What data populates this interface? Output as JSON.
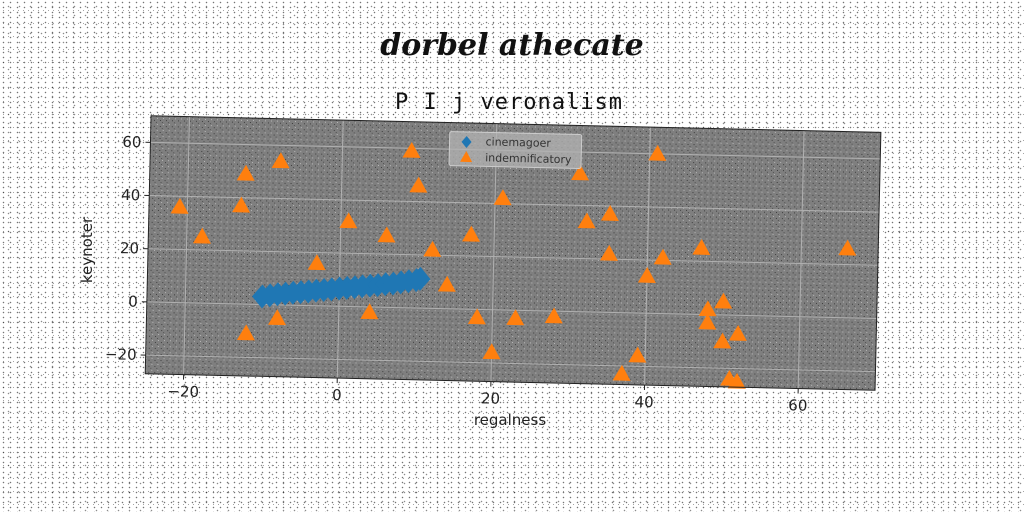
{
  "page": {
    "suptitle": "dorbel athecate"
  },
  "chart_data": {
    "type": "scatter",
    "title": "P I j veronalism",
    "xlabel": "regalness",
    "ylabel": "keynoter",
    "xlim": [
      -25,
      70
    ],
    "ylim": [
      -27,
      70
    ],
    "xticks": [
      -20,
      0,
      20,
      40,
      60
    ],
    "yticks": [
      -20,
      0,
      20,
      40,
      60
    ],
    "grid": true,
    "legend_position": "top-center",
    "colors": {
      "plot_background": "#7f7f7f",
      "grid": "#b0b0b0",
      "cinemagoer": "#1f77b4",
      "indemnificatory": "#ff7f0e"
    },
    "series": [
      {
        "name": "cinemagoer",
        "marker": "diamond",
        "points": [
          [
            -10,
            3
          ],
          [
            -9,
            3.5
          ],
          [
            -8,
            4
          ],
          [
            -7,
            4.3
          ],
          [
            -6,
            4.7
          ],
          [
            -5,
            5
          ],
          [
            -4,
            5.3
          ],
          [
            -3,
            5.7
          ],
          [
            -2,
            6
          ],
          [
            -1,
            6.3
          ],
          [
            0,
            6.7
          ],
          [
            1,
            7
          ],
          [
            2,
            7.3
          ],
          [
            3,
            7.7
          ],
          [
            4,
            8
          ],
          [
            5,
            8.3
          ],
          [
            6,
            8.7
          ],
          [
            7,
            9
          ],
          [
            8,
            9.5
          ],
          [
            9,
            10
          ],
          [
            10,
            10.5
          ],
          [
            10.5,
            11
          ]
        ]
      },
      {
        "name": "indemnificatory",
        "marker": "triangle",
        "points": [
          [
            -21,
            36
          ],
          [
            -18,
            25
          ],
          [
            -12.5,
            49
          ],
          [
            -13,
            37
          ],
          [
            -8,
            54
          ],
          [
            -12,
            -11
          ],
          [
            -8,
            -5
          ],
          [
            -3,
            16
          ],
          [
            1,
            32
          ],
          [
            4,
            -2
          ],
          [
            6,
            27
          ],
          [
            9,
            59
          ],
          [
            10,
            46
          ],
          [
            12,
            22
          ],
          [
            14,
            9
          ],
          [
            17,
            28
          ],
          [
            18,
            -3
          ],
          [
            20,
            -16
          ],
          [
            21,
            42
          ],
          [
            23,
            -3
          ],
          [
            28,
            -2
          ],
          [
            31,
            52
          ],
          [
            32,
            34
          ],
          [
            35,
            37
          ],
          [
            35,
            22
          ],
          [
            37,
            -23
          ],
          [
            39,
            -16
          ],
          [
            40,
            14
          ],
          [
            41,
            60
          ],
          [
            42,
            21
          ],
          [
            47,
            25
          ],
          [
            48,
            2
          ],
          [
            48,
            -3
          ],
          [
            50,
            -10
          ],
          [
            50,
            5
          ],
          [
            51,
            -24
          ],
          [
            52,
            -25
          ],
          [
            52,
            -7
          ],
          [
            66,
            26
          ]
        ]
      }
    ]
  }
}
